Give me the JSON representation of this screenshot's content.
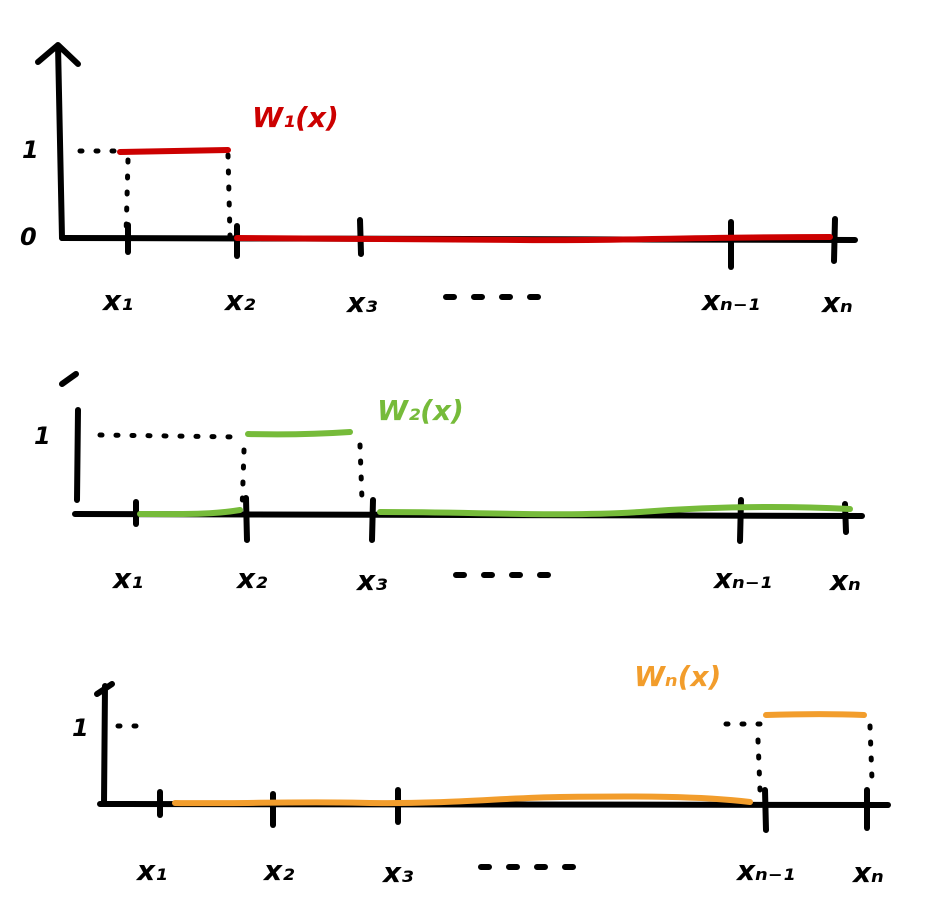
{
  "colors": {
    "panel1": "#cc0000",
    "panel2": "#76bb3a",
    "panel3": "#f29d2c",
    "axes": "#000000"
  },
  "panels": [
    {
      "function_label": "W₁(x)",
      "y_labels": [
        "1",
        "0"
      ],
      "x_labels": [
        "x₁",
        "x₂",
        "x₃",
        "· · · ·",
        "xₙ₋₁",
        "xₙ"
      ]
    },
    {
      "function_label": "W₂(x)",
      "y_labels": [
        "1"
      ],
      "x_labels": [
        "x₁",
        "x₂",
        "x₃",
        "· · · ·",
        "xₙ₋₁",
        "xₙ"
      ]
    },
    {
      "function_label": "Wₙ(x)",
      "y_labels": [
        "1"
      ],
      "x_labels": [
        "x₁",
        "x₂",
        "x₃",
        "· · · ·",
        "xₙ₋₁",
        "xₙ"
      ]
    }
  ]
}
